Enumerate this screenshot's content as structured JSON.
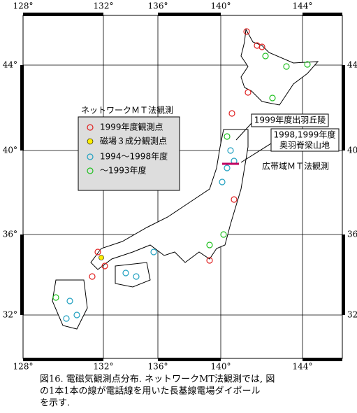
{
  "map": {
    "lon_labels": [
      "128°",
      "132°",
      "136°",
      "140°",
      "144°"
    ],
    "lat_labels": [
      "44°",
      "40°",
      "36°",
      "32°"
    ],
    "legend": {
      "title": "ネットワークＭＴ法観測",
      "items": [
        "1999年度観測点",
        "磁場３成分観測点",
        "1994～1998年度",
        "～1993年度"
      ]
    },
    "annotations": {
      "dewa": "1999年度出羽丘陵",
      "ou": [
        "1998,1999年度",
        "奥羽脊梁山地"
      ],
      "broadband": "広帯域ＭＴ法観測"
    },
    "caption": [
      "図16. 電磁気観測点分布.  ネットワークMT法観測では,  図",
      "の1本1本の線が電話線を用いた長基線電場ダイポール",
      "を示す."
    ]
  }
}
